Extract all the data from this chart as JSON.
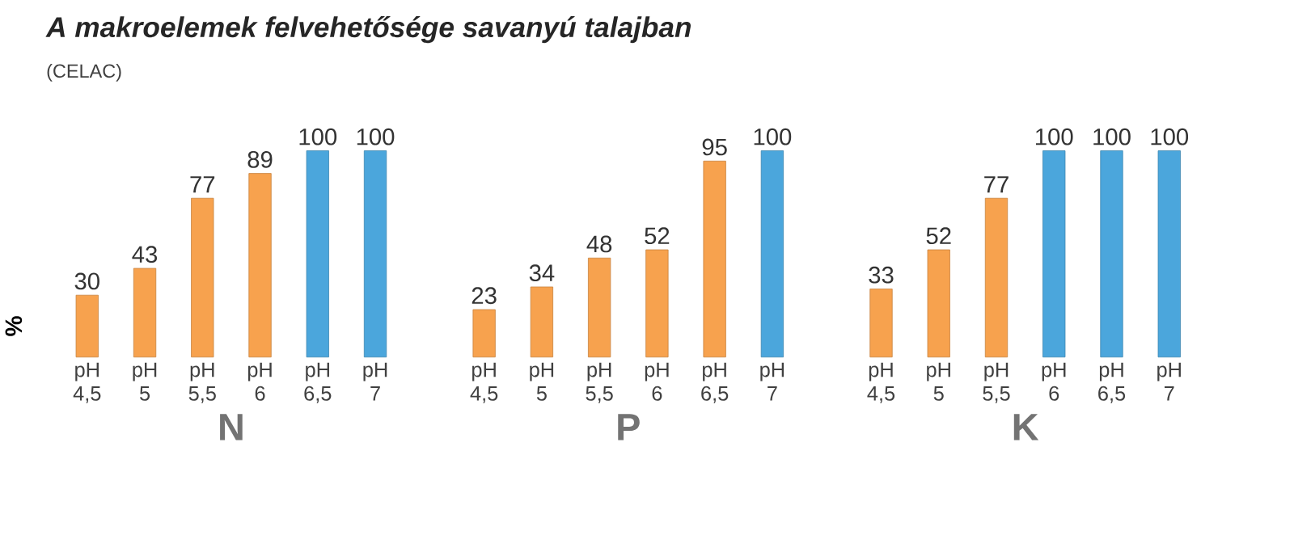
{
  "chart_data": [
    {
      "type": "bar",
      "title": "A makroelemek felvehetősége savanyú talajban",
      "subtitle": "(CELAC)",
      "ylabel": "%",
      "xlabel": "N",
      "categories": [
        "pH 4,5",
        "pH 5",
        "pH 5,5",
        "pH 6",
        "pH 6,5",
        "pH 7"
      ],
      "values": [
        30,
        43,
        77,
        89,
        100,
        100
      ],
      "colors": [
        "#f7a24e",
        "#f7a24e",
        "#f7a24e",
        "#f7a24e",
        "#4ba6dc",
        "#4ba6dc"
      ],
      "ylim": [
        0,
        100
      ],
      "tick_labels": "x",
      "data_labels": true
    },
    {
      "type": "bar",
      "xlabel": "P",
      "categories": [
        "pH 4,5",
        "pH 5",
        "pH 5,5",
        "pH 6",
        "pH 6,5",
        "pH 7"
      ],
      "values": [
        23,
        34,
        48,
        52,
        95,
        100
      ],
      "colors": [
        "#f7a24e",
        "#f7a24e",
        "#f7a24e",
        "#f7a24e",
        "#f7a24e",
        "#4ba6dc"
      ],
      "ylim": [
        0,
        100
      ],
      "tick_labels": "x",
      "data_labels": true
    },
    {
      "type": "bar",
      "xlabel": "K",
      "categories": [
        "pH 4,5",
        "pH 5",
        "pH 5,5",
        "pH 6",
        "pH 6,5",
        "pH 7"
      ],
      "values": [
        33,
        52,
        77,
        100,
        100,
        100
      ],
      "colors": [
        "#f7a24e",
        "#f7a24e",
        "#f7a24e",
        "#4ba6dc",
        "#4ba6dc",
        "#4ba6dc"
      ],
      "ylim": [
        0,
        100
      ],
      "tick_labels": "x",
      "data_labels": true
    }
  ]
}
